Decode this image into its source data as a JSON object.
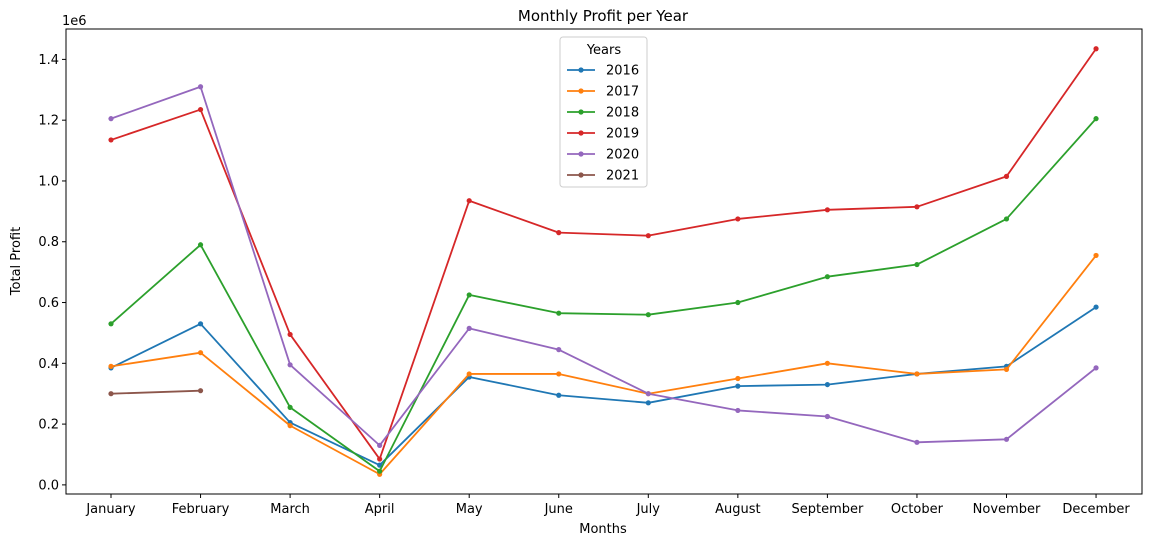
{
  "chart_data": {
    "type": "line",
    "title": "Monthly Profit per Year",
    "xlabel": "Months",
    "ylabel": "Total Profit",
    "y_offset_label": "1e6",
    "categories": [
      "January",
      "February",
      "March",
      "April",
      "May",
      "June",
      "July",
      "August",
      "September",
      "October",
      "November",
      "December"
    ],
    "ylim": [
      -0.03,
      1.5
    ],
    "yticks": [
      0.0,
      0.2,
      0.4,
      0.6,
      0.8,
      1.0,
      1.2,
      1.4
    ],
    "ytick_labels": [
      "0.0",
      "0.2",
      "0.4",
      "0.6",
      "0.8",
      "1.0",
      "1.2",
      "1.4"
    ],
    "grid": false,
    "legend": {
      "title": "Years",
      "placement": "upper-center"
    },
    "series": [
      {
        "name": "2016",
        "color": "#1f77b4",
        "values": [
          0.385,
          0.53,
          0.205,
          0.065,
          0.355,
          0.295,
          0.27,
          0.325,
          0.33,
          0.365,
          0.39,
          0.585
        ]
      },
      {
        "name": "2017",
        "color": "#ff7f0e",
        "values": [
          0.39,
          0.435,
          0.195,
          0.035,
          0.365,
          0.365,
          0.3,
          0.35,
          0.4,
          0.365,
          0.38,
          0.755
        ]
      },
      {
        "name": "2018",
        "color": "#2ca02c",
        "values": [
          0.53,
          0.79,
          0.255,
          0.045,
          0.625,
          0.565,
          0.56,
          0.6,
          0.685,
          0.725,
          0.875,
          1.205
        ]
      },
      {
        "name": "2019",
        "color": "#d62728",
        "values": [
          1.135,
          1.235,
          0.495,
          0.085,
          0.935,
          0.83,
          0.82,
          0.875,
          0.905,
          0.915,
          1.015,
          1.435
        ]
      },
      {
        "name": "2020",
        "color": "#9467bd",
        "values": [
          1.205,
          1.31,
          0.395,
          0.13,
          0.515,
          0.445,
          0.3,
          0.245,
          0.225,
          0.14,
          0.15,
          0.385
        ]
      },
      {
        "name": "2021",
        "color": "#8c564b",
        "values": [
          0.3,
          0.31,
          null,
          null,
          null,
          null,
          null,
          null,
          null,
          null,
          null,
          null
        ]
      }
    ]
  }
}
